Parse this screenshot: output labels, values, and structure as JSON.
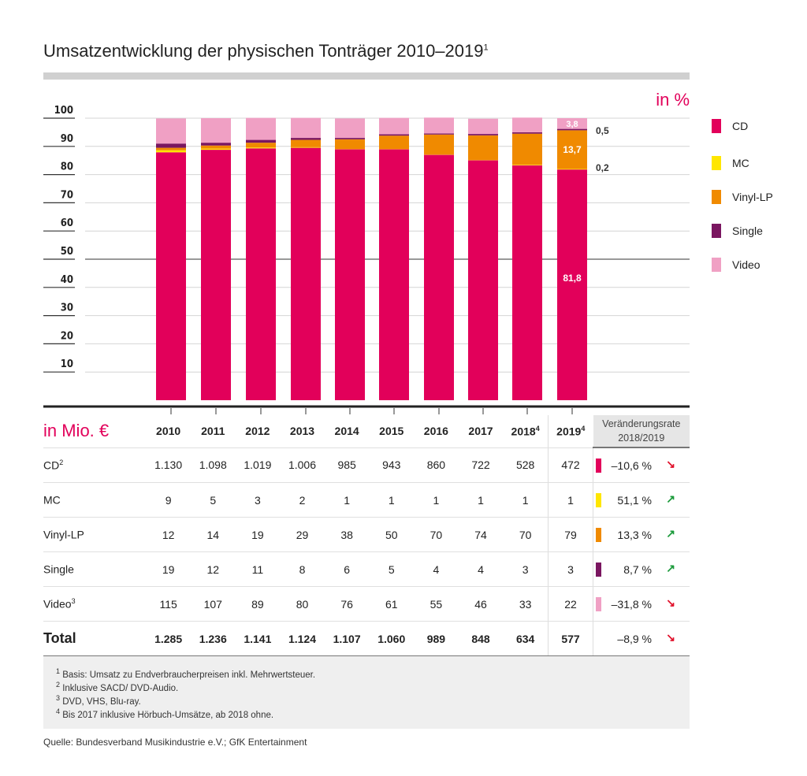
{
  "title": "Umsatzentwicklung der physischen Tonträger 2010–2019",
  "title_footnote": "1",
  "chart_data": {
    "type": "bar",
    "stacked": true,
    "unit_label": "in %",
    "categories": [
      "2010",
      "2011",
      "2012",
      "2013",
      "2014",
      "2015",
      "2016",
      "2017",
      "2018",
      "2019"
    ],
    "ylim": [
      0,
      100
    ],
    "yticks": [
      10,
      20,
      30,
      40,
      50,
      60,
      70,
      80,
      90,
      100
    ],
    "grid": true,
    "legend_position": "right",
    "series": [
      {
        "name": "CD",
        "color": "#e2005a",
        "values": [
          87.9,
          88.8,
          89.3,
          89.5,
          89.0,
          89.0,
          87.0,
          85.1,
          83.3,
          81.8
        ]
      },
      {
        "name": "MC",
        "color": "#ffe600",
        "values": [
          0.7,
          0.4,
          0.3,
          0.2,
          0.1,
          0.1,
          0.1,
          0.1,
          0.2,
          0.2
        ]
      },
      {
        "name": "Vinyl-LP",
        "color": "#f08a00",
        "values": [
          0.9,
          1.1,
          1.7,
          2.6,
          3.4,
          4.7,
          7.1,
          8.7,
          11.0,
          13.7
        ]
      },
      {
        "name": "Single",
        "color": "#7a1660",
        "values": [
          1.5,
          1.0,
          1.0,
          0.7,
          0.5,
          0.5,
          0.4,
          0.5,
          0.5,
          0.5
        ]
      },
      {
        "name": "Video",
        "color": "#f0a0c4",
        "values": [
          8.9,
          8.7,
          7.8,
          7.1,
          6.9,
          5.8,
          5.6,
          5.4,
          5.2,
          3.8
        ]
      }
    ],
    "data_labels": {
      "cd_2019": "81,8",
      "vinyl_2019": "13,7",
      "video_2019": "3,8",
      "single_2019": "0,5",
      "mc_2019": "0,2"
    }
  },
  "table": {
    "unit": "in Mio. €",
    "years": [
      "2010",
      "2011",
      "2012",
      "2013",
      "2014",
      "2015",
      "2016",
      "2017",
      "2018",
      "2019"
    ],
    "year_footnote_2018": "4",
    "year_footnote_2019": "4",
    "change_header_1": "Veränderungsrate",
    "change_header_2": "2018/2019",
    "rows": [
      {
        "label": "CD",
        "footnote": "2",
        "color": "#e2005a",
        "values": [
          "1.130",
          "1.098",
          "1.019",
          "1.006",
          "985",
          "943",
          "860",
          "722",
          "528",
          "472"
        ],
        "change": "–10,6 %",
        "trend": "down"
      },
      {
        "label": "MC",
        "footnote": "",
        "color": "#ffe600",
        "values": [
          "9",
          "5",
          "3",
          "2",
          "1",
          "1",
          "1",
          "1",
          "1",
          "1"
        ],
        "change": "51,1 %",
        "trend": "up"
      },
      {
        "label": "Vinyl-LP",
        "footnote": "",
        "color": "#f08a00",
        "values": [
          "12",
          "14",
          "19",
          "29",
          "38",
          "50",
          "70",
          "74",
          "70",
          "79"
        ],
        "change": "13,3 %",
        "trend": "up"
      },
      {
        "label": "Single",
        "footnote": "",
        "color": "#7a1660",
        "values": [
          "19",
          "12",
          "11",
          "8",
          "6",
          "5",
          "4",
          "4",
          "3",
          "3"
        ],
        "change": "8,7 %",
        "trend": "up"
      },
      {
        "label": "Video",
        "footnote": "3",
        "color": "#f0a0c4",
        "values": [
          "115",
          "107",
          "89",
          "80",
          "76",
          "61",
          "55",
          "46",
          "33",
          "22"
        ],
        "change": "–31,8 %",
        "trend": "down"
      }
    ],
    "total": {
      "label": "Total",
      "values": [
        "1.285",
        "1.236",
        "1.141",
        "1.124",
        "1.107",
        "1.060",
        "989",
        "848",
        "634",
        "577"
      ],
      "change": "–8,9 %",
      "trend": "down"
    }
  },
  "footnotes": [
    {
      "num": "1",
      "text": "Basis: Umsatz zu Endverbraucherpreisen inkl. Mehrwertsteuer."
    },
    {
      "num": "2",
      "text": "Inklusive SACD/ DVD-Audio."
    },
    {
      "num": "3",
      "text": "DVD, VHS, Blu-ray."
    },
    {
      "num": "4",
      "text": "Bis 2017 inklusive Hörbuch-Umsätze, ab 2018 ohne."
    }
  ],
  "source": "Quelle: Bundesverband Musikindustrie e.V.; GfK Entertainment",
  "colors": {
    "accent": "#e2005a",
    "up_arrow": "#1a9a3a",
    "down_arrow": "#e0102a"
  }
}
